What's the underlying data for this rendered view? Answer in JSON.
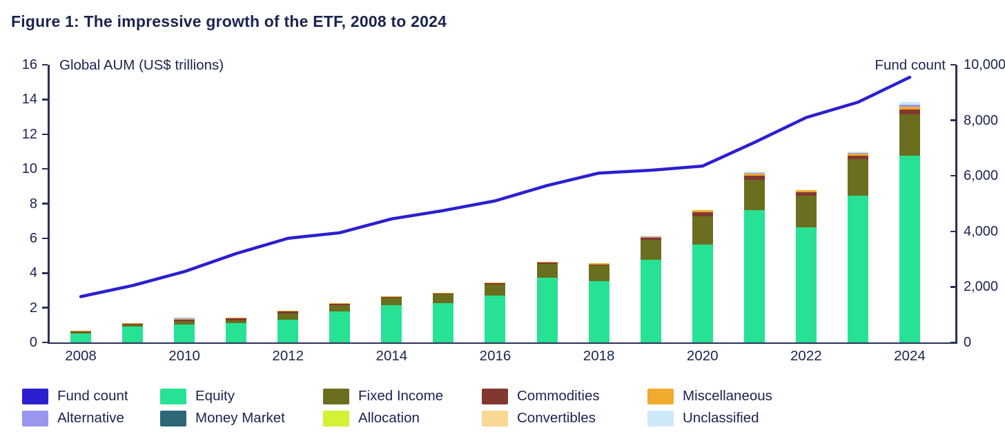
{
  "figure": {
    "title": "Figure 1: The impressive growth of the ETF, 2008 to 2024"
  },
  "chart_data": {
    "type": "combo: stacked bar (left axis) + line (right axis)",
    "title": "Figure 1: The impressive growth of the ETF, 2008 to 2024",
    "grid": "off",
    "legend_position": "bottom",
    "left_axis": {
      "label": "Global AUM (US$ trillions)",
      "min": 0,
      "max": 16,
      "ticks": [
        0,
        2,
        4,
        6,
        8,
        10,
        12,
        14,
        16
      ]
    },
    "right_axis": {
      "label": "Fund count",
      "min": 0,
      "max": 10000,
      "ticks": [
        0,
        2000,
        4000,
        6000,
        8000,
        10000
      ],
      "tick_labels": [
        "0",
        "2,000",
        "4,000",
        "6,000",
        "8,000",
        "10,000"
      ]
    },
    "categories": [
      2008,
      2009,
      2010,
      2011,
      2012,
      2013,
      2014,
      2015,
      2016,
      2017,
      2018,
      2019,
      2020,
      2021,
      2022,
      2023,
      2024
    ],
    "x_tick_labels": [
      "2008",
      "2010",
      "2012",
      "2014",
      "2016",
      "2018",
      "2020",
      "2022",
      "2024"
    ],
    "bar_series": [
      {
        "name": "Equity",
        "color": "#27e294",
        "values": [
          0.5,
          0.9,
          1.05,
          1.1,
          1.3,
          1.8,
          2.15,
          2.28,
          2.7,
          3.72,
          3.55,
          4.75,
          5.65,
          7.62,
          6.63,
          8.45,
          10.75
        ]
      },
      {
        "name": "Fixed Income",
        "color": "#6b6e1e",
        "values": [
          0.1,
          0.13,
          0.2,
          0.18,
          0.38,
          0.36,
          0.43,
          0.48,
          0.62,
          0.82,
          0.88,
          1.15,
          1.62,
          1.76,
          1.82,
          2.1,
          2.4
        ]
      },
      {
        "name": "Commodities",
        "color": "#82382f",
        "values": [
          0.03,
          0.04,
          0.08,
          0.1,
          0.1,
          0.06,
          0.05,
          0.05,
          0.09,
          0.05,
          0.07,
          0.15,
          0.25,
          0.24,
          0.2,
          0.2,
          0.28
        ]
      },
      {
        "name": "Miscellaneous",
        "color": "#f0ab2e",
        "values": [
          0.06,
          0.05,
          0.04,
          0.04,
          0.04,
          0.03,
          0.03,
          0.03,
          0.04,
          0.06,
          0.05,
          0.04,
          0.1,
          0.12,
          0.13,
          0.12,
          0.16
        ]
      },
      {
        "name": "Alternative",
        "color": "#9a96ef",
        "values": [
          0,
          0,
          0.03,
          0,
          0.02,
          0.02,
          0.01,
          0.01,
          0.01,
          0.01,
          0.01,
          0.01,
          0.01,
          0.04,
          0.01,
          0.06,
          0.12
        ]
      },
      {
        "name": "Money Market",
        "color": "#2c6877",
        "values": [
          0,
          0,
          0,
          0,
          0,
          0,
          0,
          0,
          0,
          0,
          0,
          0,
          0,
          0,
          0,
          0,
          0
        ]
      },
      {
        "name": "Allocation",
        "color": "#d3f135",
        "values": [
          0,
          0,
          0,
          0,
          0,
          0,
          0,
          0,
          0,
          0,
          0,
          0,
          0,
          0,
          0,
          0,
          0
        ]
      },
      {
        "name": "Convertibles",
        "color": "#f8d894",
        "values": [
          0,
          0,
          0,
          0,
          0,
          0,
          0,
          0,
          0,
          0,
          0,
          0,
          0,
          0,
          0,
          0,
          0
        ]
      },
      {
        "name": "Unclassified",
        "color": "#cde9f8",
        "values": [
          0,
          0,
          0.08,
          0,
          0,
          0,
          0,
          0,
          0,
          0,
          0,
          0,
          0,
          0.06,
          0,
          0.07,
          0.14
        ]
      }
    ],
    "line_series": {
      "name": "Fund count",
      "color": "#2b1fd0",
      "values": [
        1650,
        2050,
        2550,
        3200,
        3750,
        3950,
        4450,
        4750,
        5100,
        5650,
        6100,
        6200,
        6350,
        7200,
        8100,
        8650,
        9550
      ]
    },
    "legend": [
      {
        "label": "Fund count",
        "color": "#2b1fd0"
      },
      {
        "label": "Equity",
        "color": "#27e294"
      },
      {
        "label": "Fixed Income",
        "color": "#6b6e1e"
      },
      {
        "label": "Commodities",
        "color": "#82382f"
      },
      {
        "label": "Miscellaneous",
        "color": "#f0ab2e"
      },
      {
        "label": "Alternative",
        "color": "#9a96ef"
      },
      {
        "label": "Money Market",
        "color": "#2c6877"
      },
      {
        "label": "Allocation",
        "color": "#d3f135"
      },
      {
        "label": "Convertibles",
        "color": "#f8d894"
      },
      {
        "label": "Unclassified",
        "color": "#cde9f8"
      }
    ]
  }
}
